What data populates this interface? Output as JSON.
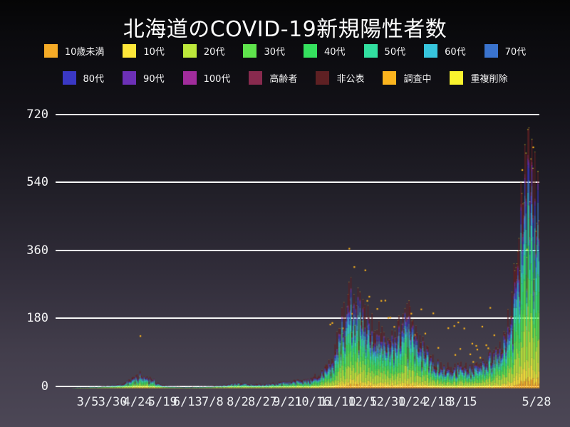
{
  "title": "北海道のCOVID-19新規陽性者数",
  "legend": {
    "position": "top",
    "rows": [
      [
        {
          "key": "under-10",
          "label": "10歳未満",
          "color": "#f5ab27"
        },
        {
          "key": "10s",
          "label": "10代",
          "color": "#fee73a"
        },
        {
          "key": "20s",
          "label": "20代",
          "color": "#bde83b"
        },
        {
          "key": "30s",
          "label": "30代",
          "color": "#5fe44c"
        },
        {
          "key": "40s",
          "label": "40代",
          "color": "#35e05e"
        },
        {
          "key": "50s",
          "label": "50代",
          "color": "#32dfa0"
        },
        {
          "key": "60s",
          "label": "60代",
          "color": "#37c5dc"
        },
        {
          "key": "70s",
          "label": "70代",
          "color": "#3a73cd"
        }
      ],
      [
        {
          "key": "80s",
          "label": "80代",
          "color": "#3a38c4"
        },
        {
          "key": "90s",
          "label": "90代",
          "color": "#6c30b6"
        },
        {
          "key": "100s",
          "label": "100代",
          "color": "#a12c9b"
        },
        {
          "key": "elderly",
          "label": "高齢者",
          "color": "#882a4e"
        },
        {
          "key": "undisclosed",
          "label": "非公表",
          "color": "#5e2023"
        },
        {
          "key": "under-investigation",
          "label": "調査中",
          "color": "#fbb41e"
        },
        {
          "key": "duplicates-removed",
          "label": "重複削除",
          "color": "#f9f32e"
        }
      ]
    ]
  },
  "y_axis": {
    "ticks": [
      {
        "label": "720",
        "value": 720
      },
      {
        "label": "540",
        "value": 540
      },
      {
        "label": "360",
        "value": 360
      },
      {
        "label": "180",
        "value": 180
      },
      {
        "label": "0",
        "value": 0
      }
    ]
  },
  "x_axis": {
    "ticks": [
      {
        "label": "3/5",
        "day": 0
      },
      {
        "label": "3/30",
        "day": 25
      },
      {
        "label": "4/24",
        "day": 50
      },
      {
        "label": "5/19",
        "day": 75
      },
      {
        "label": "6/13",
        "day": 100
      },
      {
        "label": "7/8",
        "day": 125
      },
      {
        "label": "8/2",
        "day": 150
      },
      {
        "label": "8/27",
        "day": 175
      },
      {
        "label": "9/21",
        "day": 200
      },
      {
        "label": "10/16",
        "day": 225
      },
      {
        "label": "11/10",
        "day": 250
      },
      {
        "label": "12/5",
        "day": 275
      },
      {
        "label": "12/30",
        "day": 300
      },
      {
        "label": "1/24",
        "day": 325
      },
      {
        "label": "2/18",
        "day": 350
      },
      {
        "label": "3/15",
        "day": 375
      },
      {
        "label": "5/28",
        "day": 449
      }
    ]
  },
  "chart_data": {
    "type": "bar",
    "stacked": true,
    "title": "北海道のCOVID-19新規陽性者数",
    "xlabel": "",
    "ylabel": "",
    "ylim": [
      0,
      720
    ],
    "grid": true,
    "legend_position": "top",
    "x_unit": "day (0 = 3/5, 449 = 5/28)",
    "series": [
      {
        "key": "under-10",
        "name": "10歳未満",
        "color": "#f5ab27",
        "share": 0.035,
        "render": "stack"
      },
      {
        "key": "10s",
        "name": "10代",
        "color": "#fee73a",
        "share": 0.07,
        "render": "stack"
      },
      {
        "key": "20s",
        "name": "20代",
        "color": "#bde83b",
        "share": 0.175,
        "render": "stack"
      },
      {
        "key": "30s",
        "name": "30代",
        "color": "#5fe44c",
        "share": 0.135,
        "render": "stack"
      },
      {
        "key": "40s",
        "name": "40代",
        "color": "#35e05e",
        "share": 0.135,
        "render": "stack"
      },
      {
        "key": "50s",
        "name": "50代",
        "color": "#32dfa0",
        "share": 0.125,
        "render": "stack"
      },
      {
        "key": "60s",
        "name": "60代",
        "color": "#37c5dc",
        "share": 0.085,
        "render": "stack"
      },
      {
        "key": "70s",
        "name": "70代",
        "color": "#3a73cd",
        "share": 0.07,
        "render": "stack"
      },
      {
        "key": "80s",
        "name": "80代",
        "color": "#3a38c4",
        "share": 0.05,
        "render": "stack"
      },
      {
        "key": "90s",
        "name": "90代",
        "color": "#6c30b6",
        "share": 0.025,
        "render": "stack"
      },
      {
        "key": "100s",
        "name": "100代",
        "color": "#a12c9b",
        "share": 0.004,
        "render": "stack"
      },
      {
        "key": "elderly",
        "name": "高齢者",
        "color": "#882a4e",
        "share": 0.013,
        "render": "stack"
      },
      {
        "key": "undisclosed",
        "name": "非公表",
        "color": "#5e2023",
        "share": 0.075,
        "render": "stack"
      },
      {
        "key": "duplicates-removed",
        "name": "重複削除",
        "color": "#f9f32e",
        "share": 0.003,
        "render": "stack"
      },
      {
        "key": "under-investigation",
        "name": "調査中",
        "color": "#fbb41e",
        "share": 0,
        "render": "dots"
      }
    ],
    "daily_total_control_points": [
      [
        -16,
        1
      ],
      [
        0,
        3
      ],
      [
        10,
        4
      ],
      [
        20,
        6
      ],
      [
        35,
        12
      ],
      [
        45,
        25
      ],
      [
        52,
        38
      ],
      [
        60,
        30
      ],
      [
        70,
        14
      ],
      [
        80,
        6
      ],
      [
        95,
        3
      ],
      [
        110,
        4
      ],
      [
        125,
        6
      ],
      [
        140,
        10
      ],
      [
        150,
        14
      ],
      [
        160,
        12
      ],
      [
        175,
        10
      ],
      [
        190,
        14
      ],
      [
        200,
        17
      ],
      [
        215,
        22
      ],
      [
        225,
        28
      ],
      [
        235,
        45
      ],
      [
        245,
        85
      ],
      [
        252,
        150
      ],
      [
        258,
        220
      ],
      [
        263,
        265
      ],
      [
        270,
        230
      ],
      [
        278,
        185
      ],
      [
        285,
        175
      ],
      [
        292,
        160
      ],
      [
        300,
        120
      ],
      [
        307,
        130
      ],
      [
        313,
        175
      ],
      [
        318,
        205
      ],
      [
        325,
        170
      ],
      [
        333,
        120
      ],
      [
        342,
        85
      ],
      [
        352,
        60
      ],
      [
        362,
        55
      ],
      [
        372,
        60
      ],
      [
        382,
        55
      ],
      [
        392,
        65
      ],
      [
        400,
        80
      ],
      [
        408,
        95
      ],
      [
        415,
        130
      ],
      [
        421,
        180
      ],
      [
        427,
        290
      ],
      [
        432,
        420
      ],
      [
        436,
        560
      ],
      [
        440,
        665
      ],
      [
        443,
        600
      ],
      [
        446,
        520
      ],
      [
        451,
        470
      ]
    ],
    "peak_value_approx": 720,
    "first_wave_peak_approx": 45,
    "second_wave_peak_approx": 295
  }
}
